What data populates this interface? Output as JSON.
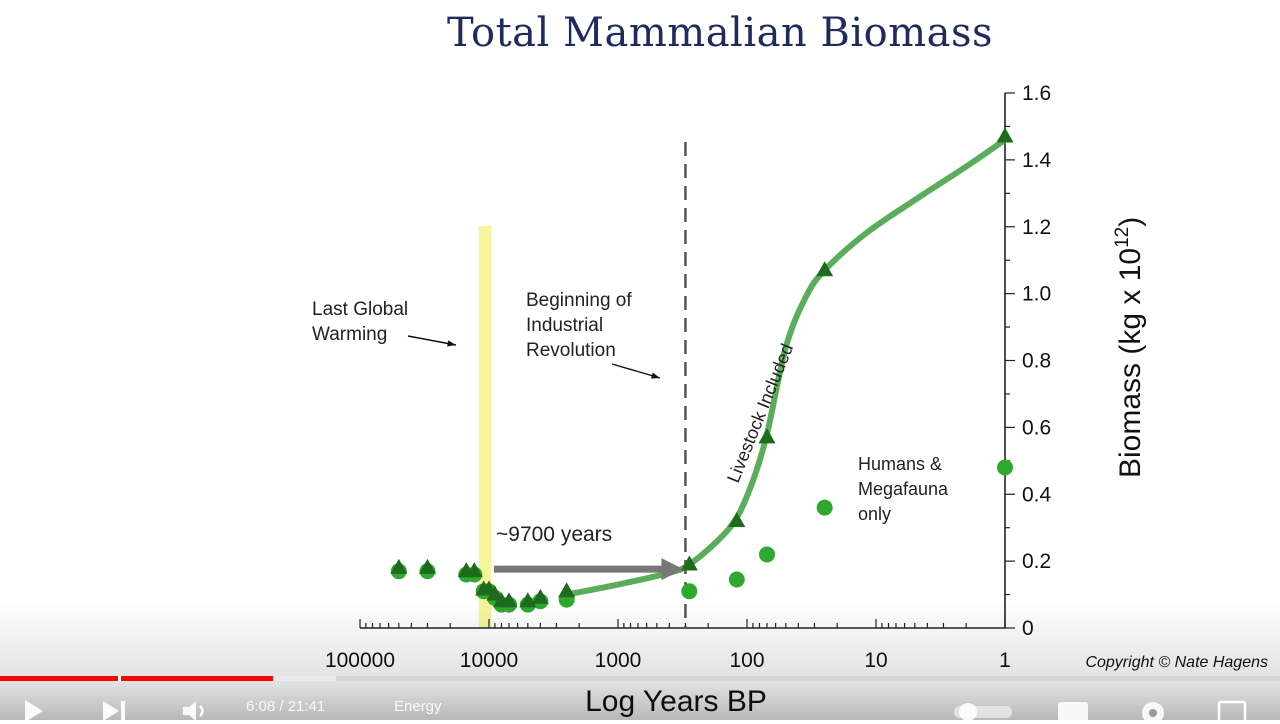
{
  "slide": {
    "title": "Total Mammalian Biomass",
    "copyright": "Copyright © Nate Hagens"
  },
  "chart_data": {
    "type": "scatter",
    "title": "Total Mammalian Biomass",
    "xlabel": "Log Years BP",
    "ylabel": "Biomass (kg x 10",
    "ylabel_superscript": "12",
    "ylabel_close": ")",
    "x_scale": "log-reversed",
    "xlim": [
      100000,
      1
    ],
    "ylim": [
      0,
      1.6
    ],
    "x_ticks": [
      100000,
      10000,
      1000,
      100,
      10,
      1
    ],
    "x_tick_labels": [
      "100000",
      "10000",
      "1000",
      "100",
      "10",
      "1"
    ],
    "y_ticks": [
      0,
      0.2,
      0.4,
      0.6,
      0.8,
      1.0,
      1.2,
      1.4,
      1.6
    ],
    "y_tick_labels": [
      "0",
      "0.2",
      "0.4",
      "0.6",
      "0.8",
      "1.0",
      "1.2",
      "1.4",
      "1.6"
    ],
    "series": [
      {
        "name": "Livestock Included",
        "marker": "triangle",
        "color": "#1e6b1e",
        "points": [
          [
            50000,
            0.18
          ],
          [
            30000,
            0.18
          ],
          [
            15000,
            0.17
          ],
          [
            13000,
            0.17
          ],
          [
            11000,
            0.115
          ],
          [
            10000,
            0.115
          ],
          [
            9000,
            0.1
          ],
          [
            8000,
            0.08
          ],
          [
            7000,
            0.08
          ],
          [
            5000,
            0.08
          ],
          [
            4000,
            0.09
          ],
          [
            2500,
            0.11
          ],
          [
            280,
            0.19
          ],
          [
            120,
            0.32
          ],
          [
            70,
            0.57
          ],
          [
            25,
            1.07
          ],
          [
            1,
            1.47
          ]
        ]
      },
      {
        "name": "Humans & Megafauna only",
        "marker": "circle",
        "color": "#2ea82e",
        "points": [
          [
            50000,
            0.17
          ],
          [
            30000,
            0.17
          ],
          [
            15000,
            0.16
          ],
          [
            13000,
            0.16
          ],
          [
            11000,
            0.11
          ],
          [
            10000,
            0.11
          ],
          [
            9000,
            0.09
          ],
          [
            8000,
            0.07
          ],
          [
            7000,
            0.07
          ],
          [
            5000,
            0.07
          ],
          [
            4000,
            0.08
          ],
          [
            2500,
            0.085
          ],
          [
            280,
            0.11
          ],
          [
            120,
            0.145
          ],
          [
            70,
            0.22
          ],
          [
            25,
            0.36
          ],
          [
            1,
            0.48
          ]
        ]
      }
    ],
    "trend_curve": {
      "name": "Livestock Included",
      "color": "#5aad5a",
      "points": [
        [
          2500,
          0.1
        ],
        [
          1000,
          0.13
        ],
        [
          400,
          0.165
        ],
        [
          280,
          0.19
        ],
        [
          170,
          0.26
        ],
        [
          120,
          0.33
        ],
        [
          90,
          0.44
        ],
        [
          70,
          0.58
        ],
        [
          50,
          0.84
        ],
        [
          35,
          0.99
        ],
        [
          25,
          1.07
        ],
        [
          12,
          1.18
        ],
        [
          5,
          1.28
        ],
        [
          2,
          1.38
        ],
        [
          1,
          1.46
        ]
      ]
    },
    "annotations": {
      "warming_band": {
        "label_line1": "Last Global",
        "label_line2": "Warming",
        "x_from": 12000,
        "x_to": 9600,
        "color": "#f6f59a"
      },
      "industrial_line": {
        "label_line1": "Beginning of",
        "label_line2": "Industrial",
        "label_line3": "Revolution",
        "x": 300
      },
      "interval_arrow": {
        "label": "~9700 years",
        "x_from": 9500,
        "x_to": 300,
        "y": 0.17,
        "color": "#777777"
      },
      "curve_label": "Livestock Included",
      "circles_label_line1": "Humans &",
      "circles_label_line2": "Megafauna",
      "circles_label_line3": "only"
    }
  },
  "player": {
    "time": "6:08 / 21:41",
    "chapter": "Energy",
    "played_fraction": 0.213,
    "buffered_fraction": 0.262,
    "colors": {
      "played": "#ff0000",
      "buffered": "#ebebeb",
      "track": "#d2d2d2"
    }
  }
}
